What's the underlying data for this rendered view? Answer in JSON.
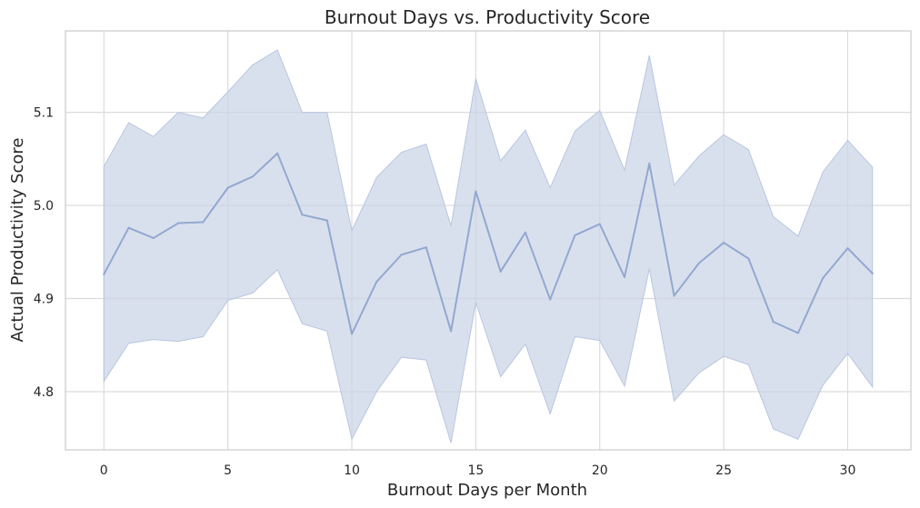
{
  "chart_data": {
    "type": "line",
    "title": "Burnout Days vs. Productivity Score",
    "xlabel": "Burnout Days per Month",
    "ylabel": "Actual Productivity Score",
    "xlim": [
      -1.55,
      32.55
    ],
    "ylim": [
      4.7375,
      5.1875
    ],
    "xticks": [
      0,
      5,
      10,
      15,
      20,
      25,
      30
    ],
    "yticks": [
      4.8,
      4.9,
      5.0,
      5.1
    ],
    "xtick_labels": [
      "0",
      "5",
      "10",
      "15",
      "20",
      "25",
      "30"
    ],
    "ytick_labels": [
      "4.8",
      "4.9",
      "5.0",
      "5.1"
    ],
    "grid": true,
    "colors": {
      "line": "#92a8d1",
      "band": "#c9d3e6",
      "band_edge": "#b7c6e0",
      "grid": "#dcdcdc",
      "spine": "#cccccc",
      "background": "#ffffff"
    },
    "series": [
      {
        "x": [
          0,
          1,
          2,
          3,
          4,
          5,
          6,
          7,
          8,
          9,
          10,
          11,
          12,
          13,
          14,
          15,
          16,
          17,
          18,
          19,
          20,
          21,
          22,
          23,
          24,
          25,
          26,
          27,
          28,
          29,
          30,
          31
        ],
        "values": [
          4.926,
          4.976,
          4.965,
          4.981,
          4.982,
          5.019,
          5.031,
          5.056,
          4.99,
          4.984,
          4.862,
          4.918,
          4.947,
          4.955,
          4.865,
          5.015,
          4.929,
          4.971,
          4.899,
          4.968,
          4.98,
          4.923,
          5.045,
          4.903,
          4.938,
          4.96,
          4.943,
          4.875,
          4.863,
          4.922,
          4.954,
          4.927
        ],
        "ci_lower": [
          4.811,
          4.852,
          4.856,
          4.854,
          4.859,
          4.898,
          4.906,
          4.931,
          4.873,
          4.865,
          4.749,
          4.8,
          4.837,
          4.834,
          4.745,
          4.896,
          4.816,
          4.851,
          4.776,
          4.859,
          4.855,
          4.806,
          4.932,
          4.79,
          4.82,
          4.838,
          4.829,
          4.76,
          4.749,
          4.807,
          4.841,
          4.805
        ],
        "ci_upper": [
          5.042,
          5.089,
          5.074,
          5.1,
          5.094,
          5.122,
          5.151,
          5.167,
          5.1,
          5.1,
          4.973,
          5.03,
          5.057,
          5.066,
          4.978,
          5.136,
          5.048,
          5.081,
          5.019,
          5.08,
          5.102,
          5.038,
          5.161,
          5.022,
          5.053,
          5.076,
          5.06,
          4.988,
          4.967,
          5.036,
          5.07,
          5.041
        ]
      }
    ]
  }
}
